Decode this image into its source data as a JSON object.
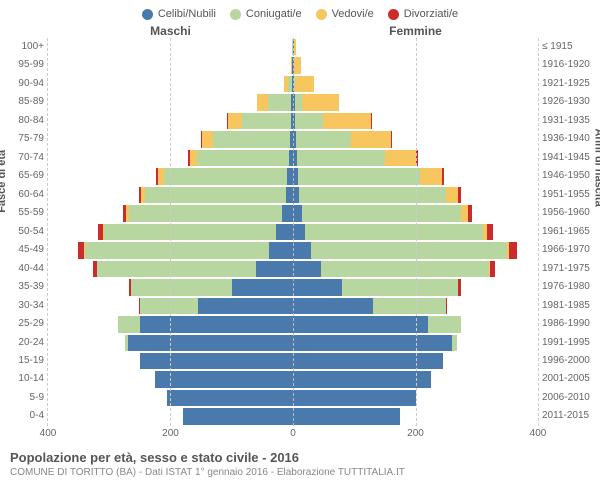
{
  "legend": [
    {
      "label": "Celibi/Nubili",
      "color": "#4a7aab"
    },
    {
      "label": "Coniugati/e",
      "color": "#b7d6a0"
    },
    {
      "label": "Vedovi/e",
      "color": "#f7c65f"
    },
    {
      "label": "Divorziati/e",
      "color": "#cc2b2b"
    }
  ],
  "header_left": "Maschi",
  "header_right": "Femmine",
  "yaxis_left_title": "Fasce di età",
  "yaxis_right_title": "Anni di nascita",
  "age_labels": [
    "100+",
    "95-99",
    "90-94",
    "85-89",
    "80-84",
    "75-79",
    "70-74",
    "65-69",
    "60-64",
    "55-59",
    "50-54",
    "45-49",
    "40-44",
    "35-39",
    "30-34",
    "25-29",
    "20-24",
    "15-19",
    "10-14",
    "5-9",
    "0-4"
  ],
  "birth_labels": [
    "≤ 1915",
    "1916-1920",
    "1921-1925",
    "1926-1930",
    "1931-1935",
    "1936-1940",
    "1941-1945",
    "1946-1950",
    "1951-1955",
    "1956-1960",
    "1961-1965",
    "1966-1970",
    "1971-1975",
    "1976-1980",
    "1981-1985",
    "1986-1990",
    "1991-1995",
    "1996-2000",
    "2001-2005",
    "2006-2010",
    "2011-2015"
  ],
  "xmax": 400,
  "xticks": [
    400,
    200,
    0,
    200,
    400
  ],
  "colors": {
    "cel": "#4a7aab",
    "con": "#b7d6a0",
    "ved": "#f7c65f",
    "div": "#cc2b2b"
  },
  "grid_color": "#cccccc",
  "background_color": "#ffffff",
  "male": [
    {
      "cel": 0,
      "con": 1,
      "ved": 0,
      "div": 0
    },
    {
      "cel": 1,
      "con": 1,
      "ved": 2,
      "div": 0
    },
    {
      "cel": 2,
      "con": 7,
      "ved": 6,
      "div": 0
    },
    {
      "cel": 3,
      "con": 38,
      "ved": 18,
      "div": 0
    },
    {
      "cel": 4,
      "con": 80,
      "ved": 22,
      "div": 2
    },
    {
      "cel": 5,
      "con": 125,
      "ved": 18,
      "div": 2
    },
    {
      "cel": 6,
      "con": 150,
      "ved": 12,
      "div": 3
    },
    {
      "cel": 10,
      "con": 200,
      "ved": 10,
      "div": 4
    },
    {
      "cel": 12,
      "con": 230,
      "ved": 6,
      "div": 4
    },
    {
      "cel": 18,
      "con": 250,
      "ved": 4,
      "div": 6
    },
    {
      "cel": 28,
      "con": 280,
      "ved": 2,
      "div": 8
    },
    {
      "cel": 40,
      "con": 300,
      "ved": 1,
      "div": 10
    },
    {
      "cel": 60,
      "con": 260,
      "ved": 0,
      "div": 6
    },
    {
      "cel": 100,
      "con": 165,
      "ved": 0,
      "div": 3
    },
    {
      "cel": 155,
      "con": 95,
      "ved": 0,
      "div": 2
    },
    {
      "cel": 250,
      "con": 35,
      "ved": 0,
      "div": 0
    },
    {
      "cel": 270,
      "con": 4,
      "ved": 0,
      "div": 0
    },
    {
      "cel": 250,
      "con": 0,
      "ved": 0,
      "div": 0
    },
    {
      "cel": 225,
      "con": 0,
      "ved": 0,
      "div": 0
    },
    {
      "cel": 205,
      "con": 0,
      "ved": 0,
      "div": 0
    },
    {
      "cel": 180,
      "con": 0,
      "ved": 0,
      "div": 0
    }
  ],
  "female": [
    {
      "cel": 1,
      "con": 0,
      "ved": 4,
      "div": 0
    },
    {
      "cel": 1,
      "con": 0,
      "ved": 12,
      "div": 0
    },
    {
      "cel": 2,
      "con": 2,
      "ved": 30,
      "div": 0
    },
    {
      "cel": 3,
      "con": 12,
      "ved": 60,
      "div": 0
    },
    {
      "cel": 4,
      "con": 45,
      "ved": 78,
      "div": 2
    },
    {
      "cel": 5,
      "con": 90,
      "ved": 65,
      "div": 2
    },
    {
      "cel": 6,
      "con": 145,
      "ved": 50,
      "div": 3
    },
    {
      "cel": 8,
      "con": 200,
      "ved": 35,
      "div": 4
    },
    {
      "cel": 10,
      "con": 240,
      "ved": 20,
      "div": 5
    },
    {
      "cel": 14,
      "con": 260,
      "ved": 12,
      "div": 6
    },
    {
      "cel": 20,
      "con": 290,
      "ved": 6,
      "div": 10
    },
    {
      "cel": 30,
      "con": 320,
      "ved": 3,
      "div": 12
    },
    {
      "cel": 45,
      "con": 275,
      "ved": 1,
      "div": 8
    },
    {
      "cel": 80,
      "con": 190,
      "ved": 0,
      "div": 4
    },
    {
      "cel": 130,
      "con": 120,
      "ved": 0,
      "div": 2
    },
    {
      "cel": 220,
      "con": 55,
      "ved": 0,
      "div": 0
    },
    {
      "cel": 260,
      "con": 8,
      "ved": 0,
      "div": 0
    },
    {
      "cel": 245,
      "con": 0,
      "ved": 0,
      "div": 0
    },
    {
      "cel": 225,
      "con": 0,
      "ved": 0,
      "div": 0
    },
    {
      "cel": 200,
      "con": 0,
      "ved": 0,
      "div": 0
    },
    {
      "cel": 175,
      "con": 0,
      "ved": 0,
      "div": 0
    }
  ],
  "footer_title": "Popolazione per età, sesso e stato civile - 2016",
  "footer_sub": "COMUNE DI TORITTO (BA) - Dati ISTAT 1° gennaio 2016 - Elaborazione TUTTITALIA.IT"
}
